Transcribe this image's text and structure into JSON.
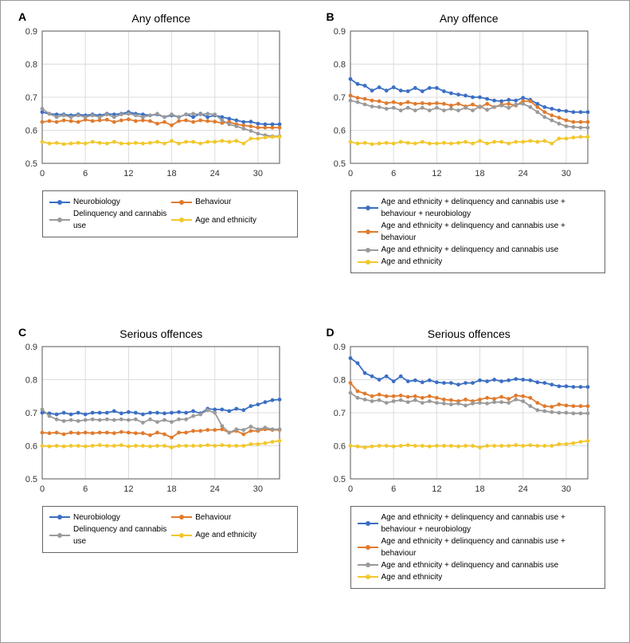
{
  "layout": {
    "figure_border_color": "#999999",
    "cols": 2,
    "rows": 2
  },
  "common_axis": {
    "xlim": [
      0,
      33
    ],
    "x_ticks": [
      0,
      6,
      12,
      18,
      24,
      30
    ],
    "ylim": [
      0.5,
      0.9
    ],
    "y_ticks": [
      0.5,
      0.6,
      0.7,
      0.8,
      0.9
    ],
    "grid_color": "#dcdcdc",
    "axis_color": "#555555",
    "background": "#ffffff",
    "tick_font_size": 11,
    "title_font_size": 14,
    "line_width": 1.8,
    "marker_radius": 2.4
  },
  "series_colors": {
    "blue": "#3b6fc4",
    "orange": "#e07b2e",
    "grey": "#9a9a9a",
    "yellow": "#f2c72c"
  },
  "x_points": [
    0,
    1,
    2,
    3,
    4,
    5,
    6,
    7,
    8,
    9,
    10,
    11,
    12,
    13,
    14,
    15,
    16,
    17,
    18,
    19,
    20,
    21,
    22,
    23,
    24,
    25,
    26,
    27,
    28,
    29,
    30,
    31,
    32,
    33
  ],
  "legends": {
    "simple": [
      {
        "color": "blue",
        "label": "Neurobiology"
      },
      {
        "color": "orange",
        "label": "Behaviour"
      },
      {
        "color": "grey",
        "label": "Delinquency and cannabis use"
      },
      {
        "color": "yellow",
        "label": "Age and ethnicity"
      }
    ],
    "nested": [
      {
        "color": "blue",
        "label": "Age and ethnicity + delinquency and cannabis use + behaviour + neurobiology"
      },
      {
        "color": "orange",
        "label": "Age and ethnicity + delinquency and cannabis use + behaviour"
      },
      {
        "color": "grey",
        "label": "Age and ethnicity + delinquency and cannabis use"
      },
      {
        "color": "yellow",
        "label": "Age and ethnicity"
      }
    ]
  },
  "panels": [
    {
      "id": "A",
      "label": "A",
      "title": "Any offence",
      "legend": "simple",
      "series": [
        {
          "color": "blue",
          "y": [
            0.655,
            0.65,
            0.648,
            0.648,
            0.645,
            0.648,
            0.645,
            0.648,
            0.645,
            0.65,
            0.648,
            0.65,
            0.655,
            0.65,
            0.648,
            0.645,
            0.648,
            0.64,
            0.645,
            0.64,
            0.648,
            0.64,
            0.65,
            0.64,
            0.645,
            0.64,
            0.635,
            0.63,
            0.625,
            0.626,
            0.62,
            0.618,
            0.618,
            0.618
          ]
        },
        {
          "color": "orange",
          "y": [
            0.625,
            0.628,
            0.625,
            0.63,
            0.628,
            0.625,
            0.632,
            0.628,
            0.63,
            0.632,
            0.625,
            0.63,
            0.633,
            0.628,
            0.63,
            0.628,
            0.62,
            0.625,
            0.615,
            0.628,
            0.63,
            0.625,
            0.63,
            0.628,
            0.626,
            0.622,
            0.625,
            0.618,
            0.615,
            0.612,
            0.608,
            0.608,
            0.608,
            0.608
          ]
        },
        {
          "color": "grey",
          "y": [
            0.665,
            0.65,
            0.64,
            0.645,
            0.64,
            0.645,
            0.64,
            0.645,
            0.64,
            0.648,
            0.64,
            0.648,
            0.65,
            0.645,
            0.64,
            0.645,
            0.65,
            0.64,
            0.648,
            0.64,
            0.648,
            0.65,
            0.648,
            0.65,
            0.648,
            0.63,
            0.618,
            0.612,
            0.605,
            0.598,
            0.59,
            0.585,
            0.582,
            0.582
          ]
        },
        {
          "color": "yellow",
          "y": [
            0.565,
            0.56,
            0.562,
            0.558,
            0.56,
            0.562,
            0.56,
            0.565,
            0.562,
            0.56,
            0.565,
            0.56,
            0.56,
            0.562,
            0.56,
            0.562,
            0.565,
            0.56,
            0.568,
            0.56,
            0.565,
            0.565,
            0.56,
            0.565,
            0.565,
            0.568,
            0.565,
            0.568,
            0.56,
            0.575,
            0.575,
            0.578,
            0.58,
            0.58
          ]
        }
      ]
    },
    {
      "id": "B",
      "label": "B",
      "title": "Any offence",
      "legend": "nested",
      "series": [
        {
          "color": "blue",
          "y": [
            0.755,
            0.74,
            0.735,
            0.72,
            0.73,
            0.72,
            0.73,
            0.72,
            0.718,
            0.728,
            0.718,
            0.728,
            0.728,
            0.718,
            0.712,
            0.708,
            0.705,
            0.7,
            0.7,
            0.695,
            0.69,
            0.688,
            0.692,
            0.69,
            0.698,
            0.692,
            0.68,
            0.67,
            0.665,
            0.66,
            0.658,
            0.655,
            0.655,
            0.655
          ]
        },
        {
          "color": "orange",
          "y": [
            0.705,
            0.698,
            0.695,
            0.69,
            0.688,
            0.682,
            0.685,
            0.68,
            0.685,
            0.68,
            0.682,
            0.68,
            0.682,
            0.68,
            0.675,
            0.68,
            0.672,
            0.678,
            0.67,
            0.68,
            0.67,
            0.678,
            0.68,
            0.675,
            0.688,
            0.688,
            0.67,
            0.655,
            0.645,
            0.638,
            0.63,
            0.625,
            0.625,
            0.625
          ]
        },
        {
          "color": "grey",
          "y": [
            0.69,
            0.685,
            0.678,
            0.672,
            0.67,
            0.665,
            0.668,
            0.66,
            0.668,
            0.66,
            0.668,
            0.66,
            0.668,
            0.66,
            0.665,
            0.66,
            0.668,
            0.66,
            0.672,
            0.662,
            0.67,
            0.675,
            0.668,
            0.678,
            0.68,
            0.67,
            0.655,
            0.64,
            0.63,
            0.62,
            0.612,
            0.61,
            0.608,
            0.608
          ]
        },
        {
          "color": "yellow",
          "y": [
            0.565,
            0.56,
            0.562,
            0.558,
            0.56,
            0.562,
            0.56,
            0.565,
            0.562,
            0.56,
            0.565,
            0.56,
            0.56,
            0.562,
            0.56,
            0.562,
            0.565,
            0.56,
            0.568,
            0.56,
            0.565,
            0.565,
            0.56,
            0.565,
            0.565,
            0.568,
            0.565,
            0.568,
            0.56,
            0.575,
            0.575,
            0.578,
            0.58,
            0.58
          ]
        }
      ]
    },
    {
      "id": "C",
      "label": "C",
      "title": "Serious offences",
      "legend": "simple",
      "series": [
        {
          "color": "blue",
          "y": [
            0.7,
            0.698,
            0.695,
            0.7,
            0.695,
            0.7,
            0.695,
            0.7,
            0.7,
            0.7,
            0.705,
            0.698,
            0.702,
            0.7,
            0.695,
            0.7,
            0.7,
            0.698,
            0.7,
            0.702,
            0.7,
            0.705,
            0.698,
            0.712,
            0.71,
            0.71,
            0.705,
            0.712,
            0.708,
            0.72,
            0.725,
            0.732,
            0.738,
            0.74
          ]
        },
        {
          "color": "orange",
          "y": [
            0.64,
            0.638,
            0.64,
            0.635,
            0.64,
            0.638,
            0.64,
            0.638,
            0.64,
            0.64,
            0.638,
            0.642,
            0.64,
            0.638,
            0.638,
            0.632,
            0.64,
            0.635,
            0.625,
            0.64,
            0.64,
            0.645,
            0.645,
            0.648,
            0.648,
            0.65,
            0.64,
            0.645,
            0.635,
            0.645,
            0.645,
            0.65,
            0.648,
            0.648
          ]
        },
        {
          "color": "grey",
          "y": [
            0.71,
            0.69,
            0.68,
            0.675,
            0.678,
            0.675,
            0.678,
            0.68,
            0.678,
            0.68,
            0.678,
            0.68,
            0.678,
            0.68,
            0.67,
            0.68,
            0.672,
            0.678,
            0.672,
            0.68,
            0.68,
            0.69,
            0.695,
            0.708,
            0.7,
            0.66,
            0.64,
            0.65,
            0.648,
            0.658,
            0.65,
            0.655,
            0.65,
            0.65
          ]
        },
        {
          "color": "yellow",
          "y": [
            0.6,
            0.598,
            0.6,
            0.598,
            0.6,
            0.6,
            0.598,
            0.6,
            0.602,
            0.6,
            0.6,
            0.602,
            0.598,
            0.6,
            0.6,
            0.598,
            0.6,
            0.6,
            0.595,
            0.6,
            0.6,
            0.6,
            0.6,
            0.602,
            0.6,
            0.602,
            0.6,
            0.6,
            0.6,
            0.605,
            0.605,
            0.608,
            0.612,
            0.615
          ]
        }
      ]
    },
    {
      "id": "D",
      "label": "D",
      "title": "Serious offences",
      "legend": "nested",
      "series": [
        {
          "color": "blue",
          "y": [
            0.865,
            0.85,
            0.82,
            0.81,
            0.8,
            0.81,
            0.795,
            0.81,
            0.795,
            0.798,
            0.792,
            0.798,
            0.792,
            0.79,
            0.79,
            0.785,
            0.79,
            0.79,
            0.798,
            0.795,
            0.8,
            0.795,
            0.798,
            0.802,
            0.8,
            0.798,
            0.792,
            0.79,
            0.785,
            0.78,
            0.78,
            0.778,
            0.778,
            0.778
          ]
        },
        {
          "color": "orange",
          "y": [
            0.79,
            0.765,
            0.758,
            0.75,
            0.755,
            0.75,
            0.75,
            0.752,
            0.748,
            0.75,
            0.745,
            0.75,
            0.745,
            0.74,
            0.738,
            0.735,
            0.74,
            0.735,
            0.74,
            0.745,
            0.742,
            0.748,
            0.742,
            0.752,
            0.75,
            0.745,
            0.73,
            0.72,
            0.718,
            0.725,
            0.722,
            0.72,
            0.72,
            0.72
          ]
        },
        {
          "color": "grey",
          "y": [
            0.76,
            0.745,
            0.74,
            0.735,
            0.738,
            0.73,
            0.735,
            0.738,
            0.732,
            0.738,
            0.73,
            0.735,
            0.73,
            0.728,
            0.725,
            0.728,
            0.722,
            0.728,
            0.73,
            0.728,
            0.732,
            0.732,
            0.73,
            0.74,
            0.735,
            0.72,
            0.708,
            0.705,
            0.702,
            0.7,
            0.7,
            0.698,
            0.698,
            0.698
          ]
        },
        {
          "color": "yellow",
          "y": [
            0.6,
            0.598,
            0.595,
            0.598,
            0.6,
            0.6,
            0.598,
            0.6,
            0.602,
            0.6,
            0.6,
            0.598,
            0.6,
            0.6,
            0.6,
            0.598,
            0.6,
            0.6,
            0.595,
            0.6,
            0.6,
            0.6,
            0.6,
            0.602,
            0.6,
            0.602,
            0.6,
            0.6,
            0.6,
            0.605,
            0.605,
            0.608,
            0.612,
            0.615
          ]
        }
      ]
    }
  ]
}
